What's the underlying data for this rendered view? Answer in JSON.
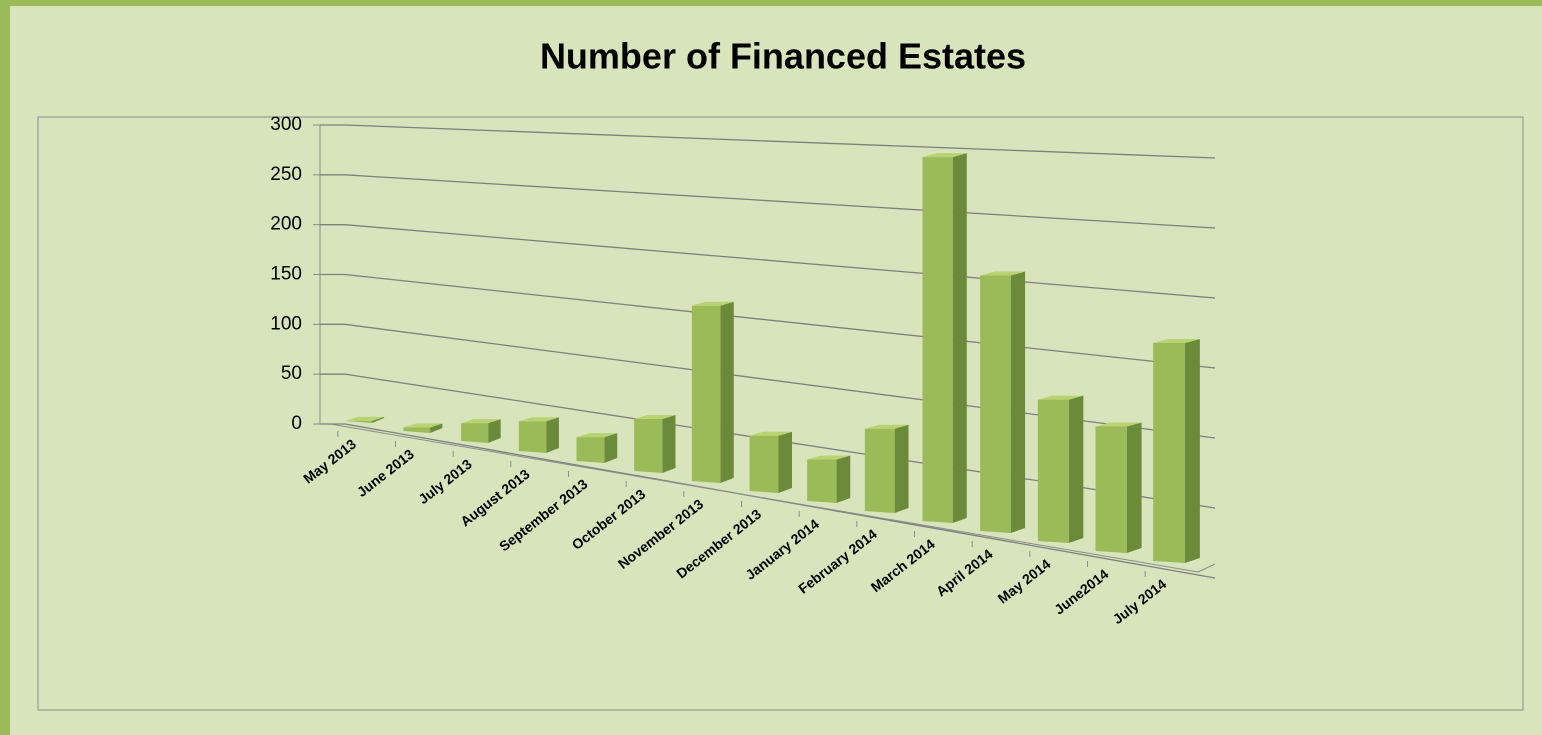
{
  "chart_data": {
    "type": "bar3d",
    "title": "Number of Financed Estates",
    "categories": [
      "May 2013",
      "June 2013",
      "July 2013",
      "August 2013",
      "September 2013",
      "October 2013",
      "November 2013",
      "December 2013",
      "January 2014",
      "February 2014",
      "March 2014",
      "April 2014",
      "May 2014",
      "June2014",
      "July 2014"
    ],
    "values": [
      2,
      5,
      18,
      28,
      22,
      45,
      145,
      45,
      33,
      63,
      270,
      185,
      100,
      86,
      147
    ],
    "color": "#9bbb59",
    "ylim": [
      0,
      300
    ],
    "yticks": [
      0,
      50,
      100,
      150,
      200,
      250,
      300
    ],
    "grid": true
  }
}
